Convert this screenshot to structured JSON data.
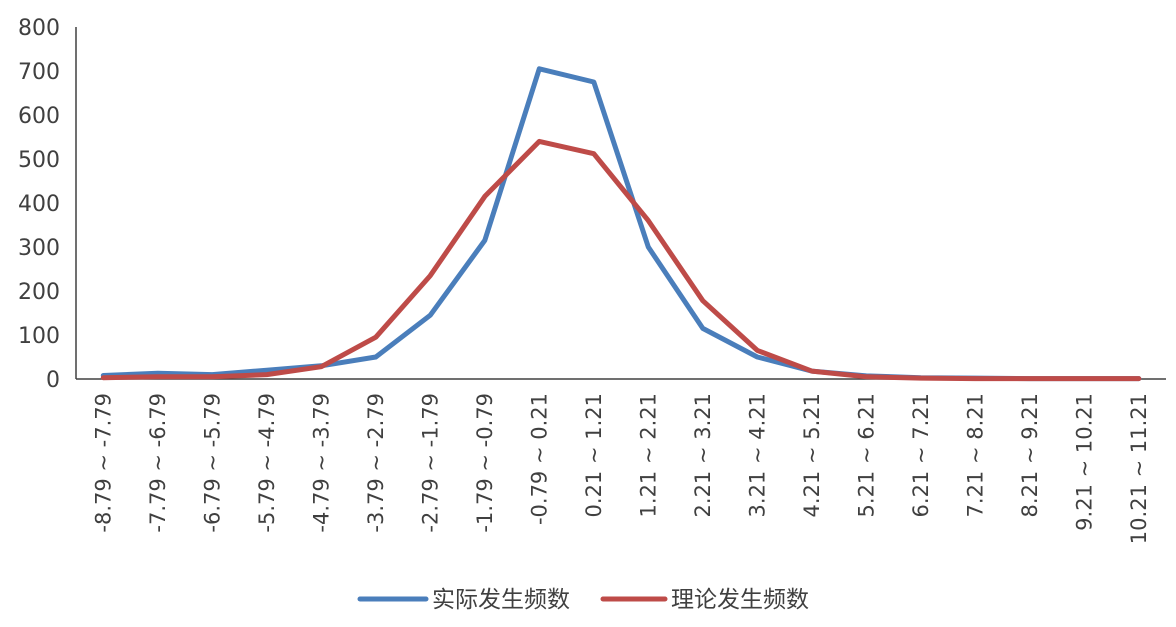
{
  "chart_data": {
    "type": "line",
    "categories": [
      "-8.79 ~ -7.79",
      "-7.79 ~ -6.79",
      "-6.79 ~ -5.79",
      "-5.79 ~ -4.79",
      "-4.79 ~ -3.79",
      "-3.79 ~ -2.79",
      "-2.79 ~ -1.79",
      "-1.79 ~ -0.79",
      "-0.79 ~ 0.21",
      "0.21 ~ 1.21",
      "1.21 ~ 2.21",
      "2.21 ~ 3.21",
      "3.21 ~ 4.21",
      "4.21 ~ 5.21",
      "5.21 ~ 6.21",
      "6.21 ~ 7.21",
      "7.21 ~ 8.21",
      "8.21 ~ 9.21",
      "9.21 ~ 10.21",
      "10.21 ~ 11.21"
    ],
    "series": [
      {
        "name": "实际发生频数",
        "color": "#4A7EBB",
        "values": [
          8,
          13,
          10,
          20,
          30,
          50,
          145,
          315,
          705,
          675,
          300,
          115,
          50,
          18,
          7,
          3,
          2,
          1,
          1,
          1
        ]
      },
      {
        "name": "理论发生频数",
        "color": "#BE4B48",
        "values": [
          3,
          5,
          5,
          10,
          28,
          95,
          235,
          415,
          540,
          512,
          360,
          178,
          65,
          18,
          5,
          2,
          1,
          1,
          1,
          1
        ]
      }
    ],
    "ylim": [
      0,
      800
    ],
    "yticks": [
      "0",
      "100",
      "200",
      "300",
      "400",
      "500",
      "600",
      "700",
      "800"
    ],
    "grid": false,
    "legend": "bottom",
    "title": "",
    "xlabel": "",
    "ylabel": ""
  }
}
